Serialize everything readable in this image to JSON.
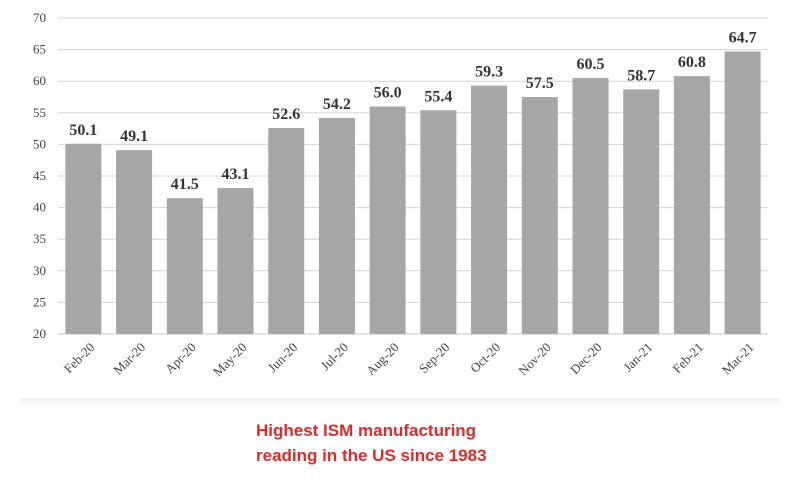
{
  "chart_data": {
    "type": "bar",
    "title": "",
    "xlabel": "",
    "ylabel": "",
    "categories": [
      "Feb-20",
      "Mar-20",
      "Apr-20",
      "May-20",
      "Jun-20",
      "Jul-20",
      "Aug-20",
      "Sep-20",
      "Oct-20",
      "Nov-20",
      "Dec-20",
      "Jan-21",
      "Feb-21",
      "Mar-21"
    ],
    "values": [
      50.1,
      49.1,
      41.5,
      43.1,
      52.6,
      54.2,
      56.0,
      55.4,
      59.3,
      57.5,
      60.5,
      58.7,
      60.8,
      64.7
    ],
    "value_labels": [
      "50.1",
      "49.1",
      "41.5",
      "43.1",
      "52.6",
      "54.2",
      "56.0",
      "55.4",
      "59.3",
      "57.5",
      "60.5",
      "58.7",
      "60.8",
      "64.7"
    ],
    "ylim": [
      20,
      70
    ],
    "yticks": [
      "20",
      "25",
      "30",
      "35",
      "40",
      "45",
      "50",
      "55",
      "60",
      "65",
      "70"
    ],
    "grid": true,
    "legend": "none",
    "bar_color": "#a6a6a6"
  },
  "caption": {
    "line1": "Highest ISM manufacturing",
    "line2": "reading in the US since 1983",
    "color": "#e02a2a"
  }
}
